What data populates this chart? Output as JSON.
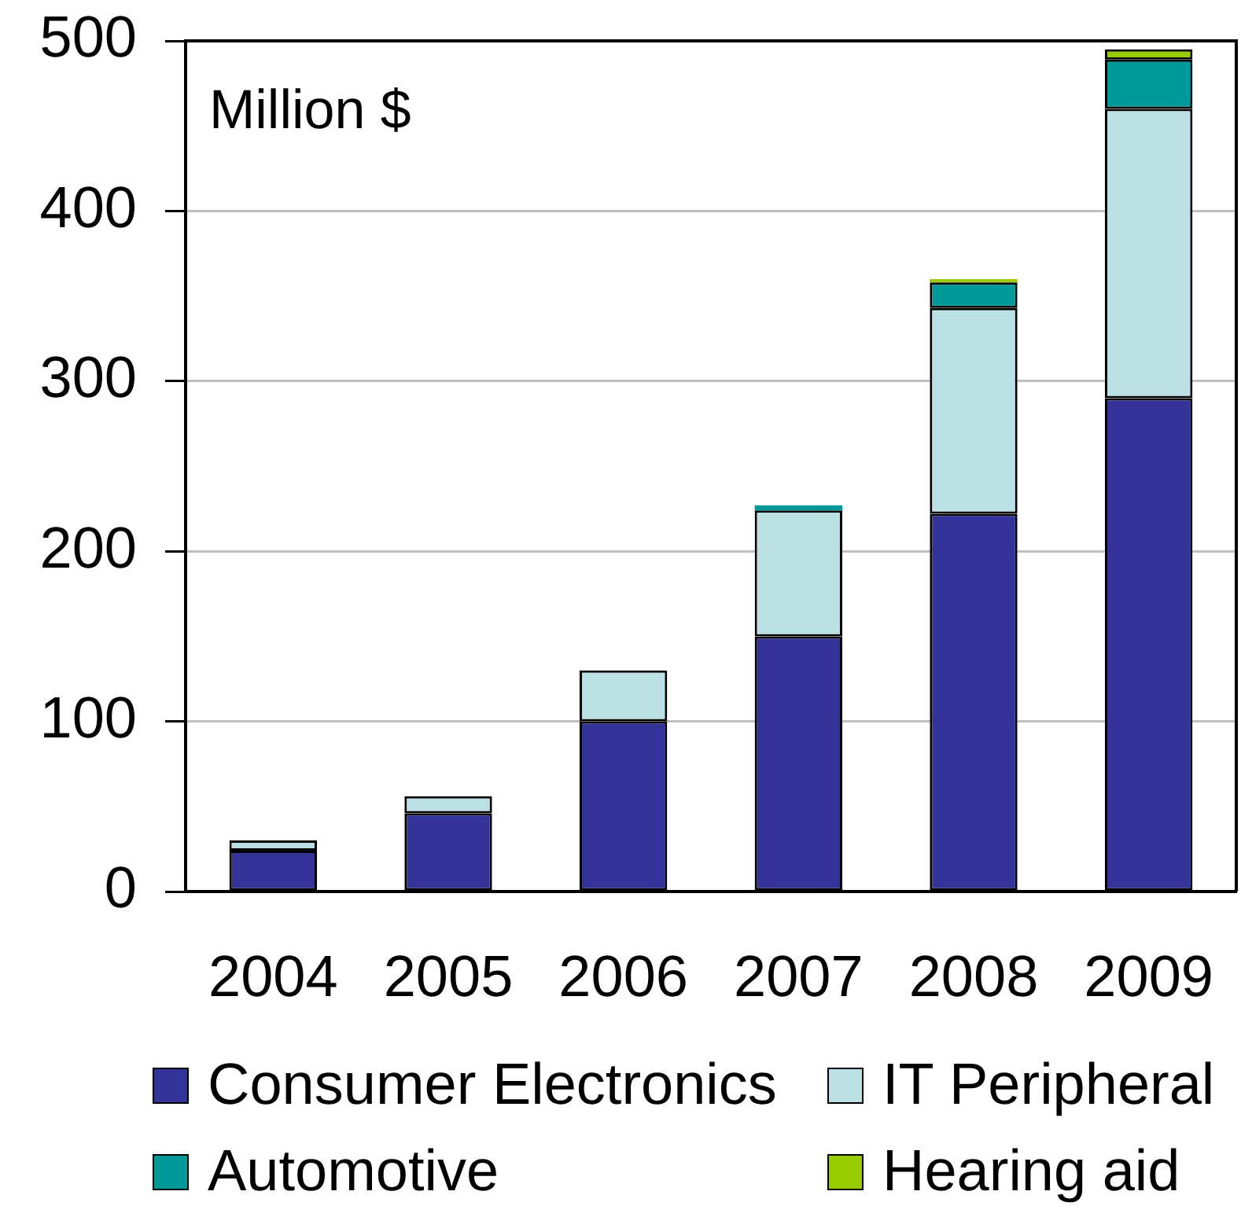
{
  "chart_data": {
    "type": "bar",
    "stacked": true,
    "categories": [
      "2004",
      "2005",
      "2006",
      "2007",
      "2008",
      "2009"
    ],
    "series": [
      {
        "name": "Consumer Electronics",
        "color": "#333399",
        "values": [
          24,
          46,
          100,
          150,
          222,
          290
        ]
      },
      {
        "name": "IT Peripheral",
        "color": "#bbe0e3",
        "values": [
          6,
          10,
          30,
          74,
          121,
          170
        ]
      },
      {
        "name": "Automotive",
        "color": "#009999",
        "values": [
          null,
          null,
          null,
          3,
          15,
          29
        ]
      },
      {
        "name": "Hearing aid",
        "color": "#99cc00",
        "values": [
          null,
          null,
          null,
          null,
          2,
          6
        ]
      }
    ],
    "ylim": [
      0,
      500
    ],
    "yticks": [
      0,
      100,
      200,
      300,
      400,
      500
    ],
    "grid": "y",
    "legend": "bottom",
    "annotations": [
      "Million $"
    ]
  }
}
